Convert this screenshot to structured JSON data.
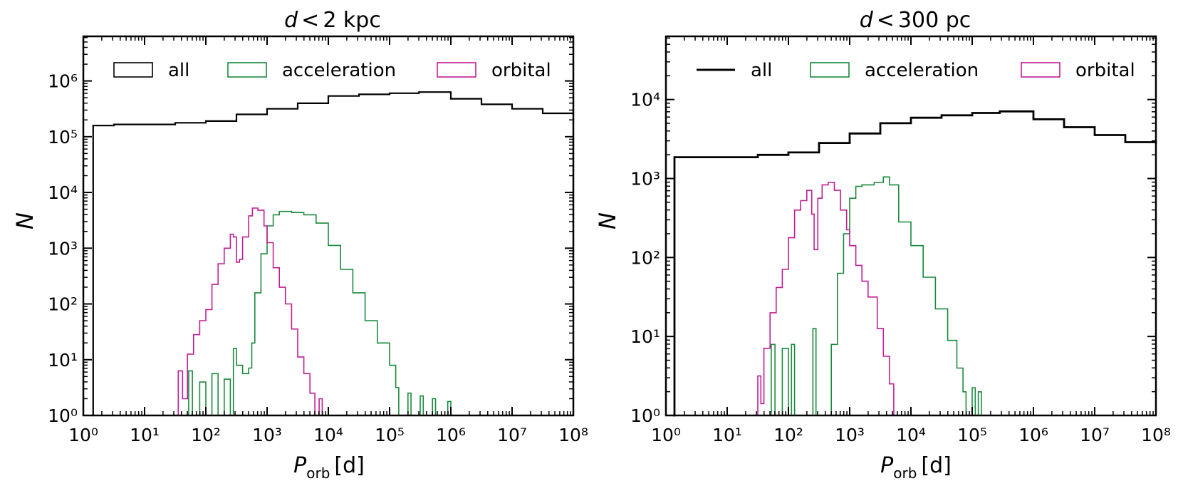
{
  "colors": {
    "all": "#000000",
    "acceleration": "#1a8a3c",
    "orbital": "#c21e94"
  },
  "chart_data": [
    {
      "type": "line",
      "subtype": "step-histogram",
      "title": "d < 2 kpc",
      "title_parts": {
        "var": "d",
        "op": "<",
        "value": "2 kpc"
      },
      "xlabel": "P_orb [d]",
      "xlabel_parts": {
        "main": "P",
        "sub": "orb",
        "unit": "[d]"
      },
      "ylabel": "N",
      "xscale": "log",
      "yscale": "log",
      "xlim_log": [
        0,
        8
      ],
      "ylim_log": [
        0,
        6.8
      ],
      "xticks": [
        0,
        1,
        2,
        3,
        4,
        5,
        6,
        7,
        8
      ],
      "yticks": [
        0,
        1,
        2,
        3,
        4,
        5,
        6
      ],
      "legend_position": "top",
      "legend": [
        {
          "label": "all",
          "style": "box",
          "color": "#000000"
        },
        {
          "label": "acceleration",
          "style": "box",
          "color": "#1a8a3c"
        },
        {
          "label": "orbital",
          "style": "box",
          "color": "#c21e94"
        }
      ],
      "series": [
        {
          "name": "all",
          "color": "#000000",
          "lw": 2.2,
          "points_log10": [
            [
              0.14,
              0
            ],
            [
              0.16,
              5.2
            ],
            [
              0.5,
              5.22
            ],
            [
              1.0,
              5.22
            ],
            [
              1.5,
              5.25
            ],
            [
              2.0,
              5.28
            ],
            [
              2.5,
              5.4
            ],
            [
              3.0,
              5.5
            ],
            [
              3.5,
              5.6
            ],
            [
              4.0,
              5.73
            ],
            [
              4.5,
              5.76
            ],
            [
              5.0,
              5.78
            ],
            [
              5.48,
              5.8
            ],
            [
              6.0,
              5.68
            ],
            [
              6.5,
              5.58
            ],
            [
              7.0,
              5.5
            ],
            [
              7.5,
              5.42
            ],
            [
              8.0,
              5.4
            ]
          ]
        },
        {
          "name": "acceleration",
          "color": "#1a8a3c",
          "lw": 1.6,
          "points_log10": [
            [
              1.7,
              0
            ],
            [
              1.72,
              0.8
            ],
            [
              1.78,
              0
            ],
            [
              1.9,
              0.6
            ],
            [
              2.0,
              0
            ],
            [
              2.1,
              0.75
            ],
            [
              2.2,
              0
            ],
            [
              2.3,
              0.65
            ],
            [
              2.4,
              0
            ],
            [
              2.45,
              1.2
            ],
            [
              2.5,
              0.9
            ],
            [
              2.6,
              0.75
            ],
            [
              2.7,
              0.85
            ],
            [
              2.75,
              1.3
            ],
            [
              2.8,
              2.2
            ],
            [
              2.9,
              2.9
            ],
            [
              3.0,
              3.4
            ],
            [
              3.1,
              3.6
            ],
            [
              3.2,
              3.66
            ],
            [
              3.4,
              3.64
            ],
            [
              3.6,
              3.6
            ],
            [
              3.8,
              3.45
            ],
            [
              4.0,
              3.05
            ],
            [
              4.2,
              2.62
            ],
            [
              4.4,
              2.2
            ],
            [
              4.6,
              1.7
            ],
            [
              4.8,
              1.3
            ],
            [
              5.0,
              0.9
            ],
            [
              5.1,
              0.5
            ],
            [
              5.15,
              0
            ],
            [
              5.3,
              0.4
            ],
            [
              5.35,
              0
            ],
            [
              5.5,
              0.35
            ],
            [
              5.55,
              0
            ],
            [
              5.7,
              0.3
            ],
            [
              5.75,
              0
            ],
            [
              5.95,
              0.25
            ],
            [
              6.0,
              0
            ]
          ]
        },
        {
          "name": "orbital",
          "color": "#c21e94",
          "lw": 1.6,
          "points_log10": [
            [
              1.5,
              0
            ],
            [
              1.55,
              0.8
            ],
            [
              1.62,
              0.3
            ],
            [
              1.7,
              1.1
            ],
            [
              1.8,
              1.45
            ],
            [
              1.9,
              1.7
            ],
            [
              2.0,
              1.9
            ],
            [
              2.1,
              2.35
            ],
            [
              2.2,
              2.72
            ],
            [
              2.3,
              3.0
            ],
            [
              2.4,
              3.25
            ],
            [
              2.45,
              3.2
            ],
            [
              2.5,
              2.75
            ],
            [
              2.55,
              2.8
            ],
            [
              2.6,
              3.2
            ],
            [
              2.7,
              3.58
            ],
            [
              2.76,
              3.72
            ],
            [
              2.85,
              3.68
            ],
            [
              2.95,
              3.4
            ],
            [
              3.0,
              3.1
            ],
            [
              3.1,
              2.65
            ],
            [
              3.2,
              2.3
            ],
            [
              3.3,
              2.0
            ],
            [
              3.4,
              1.55
            ],
            [
              3.5,
              1.05
            ],
            [
              3.6,
              0.75
            ],
            [
              3.7,
              0.4
            ],
            [
              3.78,
              0
            ],
            [
              3.85,
              0.3
            ],
            [
              3.9,
              0
            ]
          ]
        }
      ]
    },
    {
      "type": "line",
      "subtype": "step-histogram",
      "title": "d < 300 pc",
      "title_parts": {
        "var": "d",
        "op": "<",
        "value": "300 pc"
      },
      "xlabel": "P_orb [d]",
      "xlabel_parts": {
        "main": "P",
        "sub": "orb",
        "unit": "[d]"
      },
      "ylabel": "N",
      "xscale": "log",
      "yscale": "log",
      "xlim_log": [
        0,
        8
      ],
      "ylim_log": [
        0,
        4.8
      ],
      "xticks": [
        0,
        1,
        2,
        3,
        4,
        5,
        6,
        7,
        8
      ],
      "yticks": [
        0,
        1,
        2,
        3,
        4
      ],
      "legend_position": "top",
      "legend": [
        {
          "label": "all",
          "style": "line",
          "color": "#000000"
        },
        {
          "label": "acceleration",
          "style": "box",
          "color": "#1a8a3c"
        },
        {
          "label": "orbital",
          "style": "box",
          "color": "#c21e94"
        }
      ],
      "series": [
        {
          "name": "all",
          "color": "#000000",
          "lw": 2.8,
          "points_log10": [
            [
              0.12,
              0
            ],
            [
              0.14,
              3.27
            ],
            [
              0.5,
              3.27
            ],
            [
              1.0,
              3.27
            ],
            [
              1.5,
              3.3
            ],
            [
              2.0,
              3.33
            ],
            [
              2.5,
              3.45
            ],
            [
              3.0,
              3.57
            ],
            [
              3.5,
              3.7
            ],
            [
              4.0,
              3.77
            ],
            [
              4.5,
              3.8
            ],
            [
              5.0,
              3.83
            ],
            [
              5.45,
              3.85
            ],
            [
              6.0,
              3.75
            ],
            [
              6.5,
              3.65
            ],
            [
              7.0,
              3.55
            ],
            [
              7.5,
              3.46
            ],
            [
              8.0,
              3.44
            ]
          ]
        },
        {
          "name": "acceleration",
          "color": "#1a8a3c",
          "lw": 1.6,
          "points_log10": [
            [
              1.7,
              0
            ],
            [
              1.72,
              0.9
            ],
            [
              1.78,
              0
            ],
            [
              1.9,
              0.85
            ],
            [
              2.0,
              0
            ],
            [
              2.05,
              0.9
            ],
            [
              2.1,
              0
            ],
            [
              2.35,
              0
            ],
            [
              2.4,
              1.1
            ],
            [
              2.45,
              0
            ],
            [
              2.6,
              0
            ],
            [
              2.7,
              0.9
            ],
            [
              2.8,
              1.8
            ],
            [
              2.9,
              2.3
            ],
            [
              3.0,
              2.75
            ],
            [
              3.1,
              2.9
            ],
            [
              3.2,
              2.92
            ],
            [
              3.4,
              2.95
            ],
            [
              3.55,
              3.02
            ],
            [
              3.65,
              2.92
            ],
            [
              3.8,
              2.45
            ],
            [
              4.0,
              2.15
            ],
            [
              4.2,
              1.75
            ],
            [
              4.4,
              1.35
            ],
            [
              4.6,
              0.95
            ],
            [
              4.75,
              0.6
            ],
            [
              4.85,
              0.3
            ],
            [
              4.9,
              0
            ],
            [
              5.0,
              0.35
            ],
            [
              5.05,
              0
            ],
            [
              5.1,
              0.3
            ],
            [
              5.15,
              0
            ]
          ]
        },
        {
          "name": "orbital",
          "color": "#c21e94",
          "lw": 1.6,
          "points_log10": [
            [
              1.45,
              0
            ],
            [
              1.5,
              0.5
            ],
            [
              1.55,
              0.15
            ],
            [
              1.6,
              0.85
            ],
            [
              1.7,
              1.3
            ],
            [
              1.8,
              1.62
            ],
            [
              1.9,
              1.85
            ],
            [
              2.0,
              2.25
            ],
            [
              2.1,
              2.6
            ],
            [
              2.2,
              2.72
            ],
            [
              2.3,
              2.85
            ],
            [
              2.38,
              2.55
            ],
            [
              2.42,
              2.1
            ],
            [
              2.48,
              2.75
            ],
            [
              2.55,
              2.92
            ],
            [
              2.65,
              2.95
            ],
            [
              2.75,
              2.85
            ],
            [
              2.85,
              2.6
            ],
            [
              2.95,
              2.35
            ],
            [
              3.0,
              2.15
            ],
            [
              3.1,
              1.9
            ],
            [
              3.2,
              1.7
            ],
            [
              3.3,
              1.5
            ],
            [
              3.45,
              1.1
            ],
            [
              3.55,
              0.75
            ],
            [
              3.65,
              0.4
            ],
            [
              3.72,
              0
            ]
          ]
        }
      ]
    }
  ]
}
